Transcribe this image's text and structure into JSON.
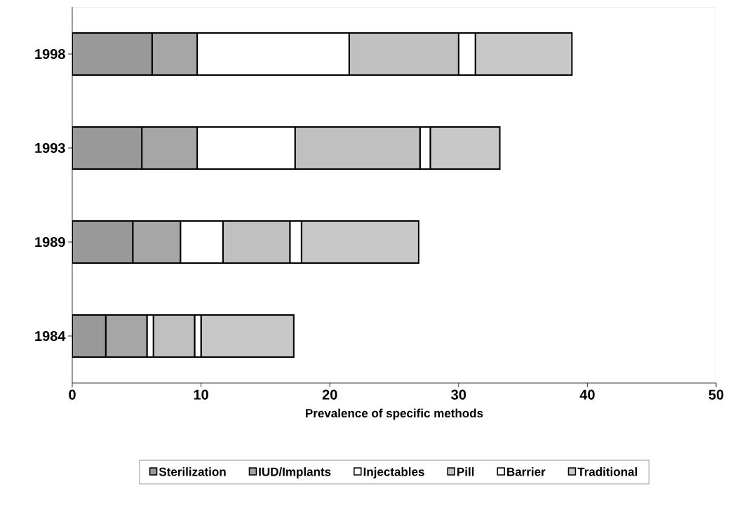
{
  "chart_data": {
    "type": "bar",
    "orientation": "horizontal",
    "stacked": true,
    "xlabel": "Prevalence of specific methods",
    "categories": [
      "1998",
      "1993",
      "1989",
      "1984"
    ],
    "xlim": [
      0,
      50
    ],
    "xticks": [
      0,
      10,
      20,
      30,
      40,
      50
    ],
    "legend": "bottom",
    "series": [
      {
        "name": "Sterilization",
        "color": "#999999",
        "values": [
          6.2,
          5.4,
          4.7,
          2.6
        ]
      },
      {
        "name": "IUD/Implants",
        "color": "#a6a6a6",
        "values": [
          3.5,
          4.3,
          3.7,
          3.2
        ]
      },
      {
        "name": "Injectables",
        "color": "#ffffff",
        "values": [
          11.8,
          7.6,
          3.3,
          0.5
        ]
      },
      {
        "name": "Pill",
        "color": "#c0c0c0",
        "values": [
          8.5,
          9.7,
          5.2,
          3.2
        ]
      },
      {
        "name": "Barrier",
        "color": "#ffffff",
        "values": [
          1.3,
          0.8,
          0.9,
          0.5
        ]
      },
      {
        "name": "Traditional",
        "color": "#c8c8c8",
        "values": [
          7.5,
          5.4,
          9.1,
          7.2
        ]
      }
    ]
  }
}
